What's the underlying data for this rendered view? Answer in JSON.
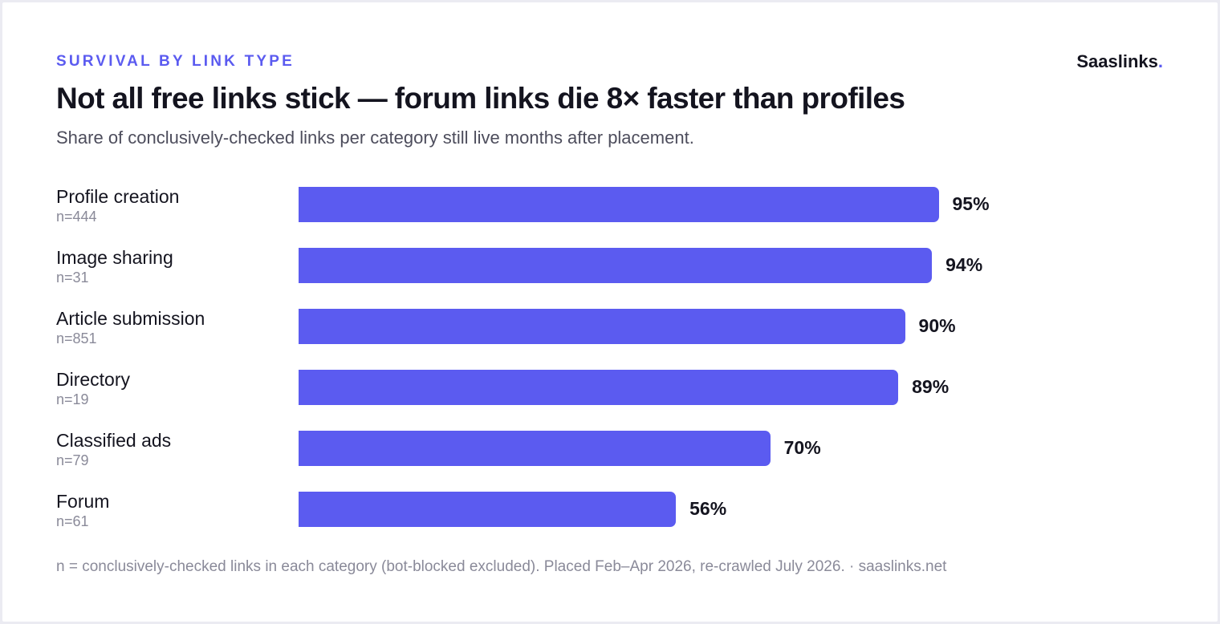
{
  "header": {
    "eyebrow": "SURVIVAL BY LINK TYPE",
    "brand_name": "Saaslinks",
    "brand_dot": ".",
    "title": "Not all free links stick — forum links die 8× faster than profiles",
    "subtitle": "Share of conclusively-checked links per category still live months after placement."
  },
  "colors": {
    "bar": "#5b5bf0",
    "accent": "#5b5bf0",
    "text": "#14141f",
    "muted": "#8a8a99"
  },
  "chart_data": {
    "type": "bar",
    "orientation": "horizontal",
    "title": "Not all free links stick — forum links die 8× faster than profiles",
    "subtitle": "Share of conclusively-checked links per category still live months after placement.",
    "xlim": [
      0,
      100
    ],
    "grid": false,
    "categories": [
      "Profile creation",
      "Image sharing",
      "Article submission",
      "Directory",
      "Classified ads",
      "Forum"
    ],
    "sample_sizes": [
      "n=444",
      "n=31",
      "n=851",
      "n=19",
      "n=79",
      "n=61"
    ],
    "values": [
      95,
      94,
      90,
      89,
      70,
      56
    ],
    "value_labels": [
      "95%",
      "94%",
      "90%",
      "89%",
      "70%",
      "56%"
    ]
  },
  "footer": {
    "note": "n = conclusively-checked links in each category (bot-blocked excluded). Placed Feb–Apr 2026, re-crawled July 2026. · saaslinks.net"
  }
}
